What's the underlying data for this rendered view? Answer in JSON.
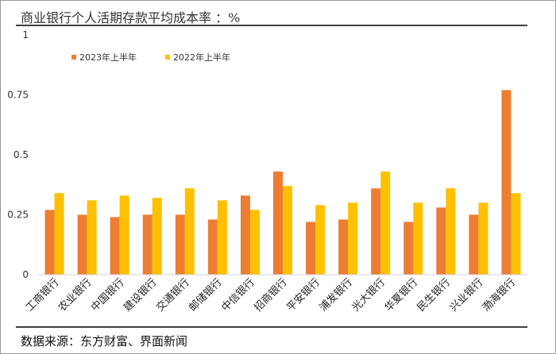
{
  "page": {
    "title": "商业银行个人活期存款平均成本率 ：%",
    "source": "数据来源：东方财富、界面新闻"
  },
  "chart_data": {
    "type": "bar",
    "title": "商业银行个人活期存款平均成本率 ：%",
    "categories": [
      "工商银行",
      "农业银行",
      "中国银行",
      "建设银行",
      "交通银行",
      "邮储银行",
      "中信银行",
      "招商银行",
      "平安银行",
      "浦发银行",
      "光大银行",
      "华夏银行",
      "民生银行",
      "兴业银行",
      "渤海银行"
    ],
    "series": [
      {
        "name": "2023年上半年",
        "color": "#ed7d31",
        "values": [
          0.27,
          0.25,
          0.24,
          0.25,
          0.25,
          0.23,
          0.33,
          0.43,
          0.22,
          0.23,
          0.36,
          0.22,
          0.28,
          0.25,
          0.77
        ]
      },
      {
        "name": "2022年上半年",
        "color": "#ffc000",
        "values": [
          0.34,
          0.31,
          0.33,
          0.32,
          0.36,
          0.31,
          0.27,
          0.37,
          0.29,
          0.3,
          0.43,
          0.3,
          0.36,
          0.3,
          0.34
        ]
      }
    ],
    "y_ticks": [
      "0",
      "0.25",
      "0.5",
      "0.75",
      "1"
    ],
    "y_tick_values": [
      0,
      0.25,
      0.5,
      0.75,
      1
    ],
    "ylim": [
      0,
      1
    ],
    "grid": false,
    "legend_position": "top-left"
  }
}
